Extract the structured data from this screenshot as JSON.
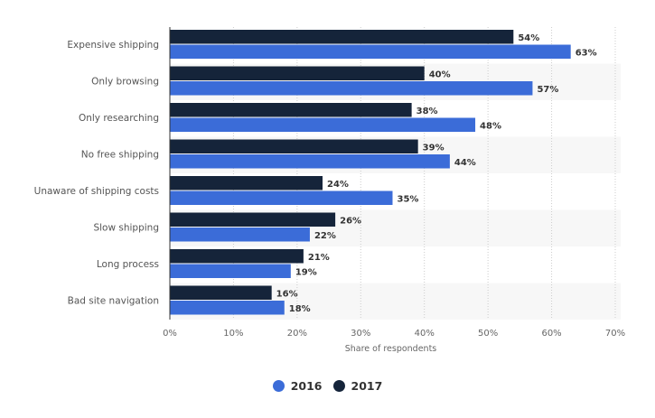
{
  "chart_data": {
    "type": "bar",
    "orientation": "horizontal",
    "title": "",
    "xlabel": "Share of respondents",
    "ylabel": "",
    "xlim": [
      0,
      70
    ],
    "x_ticks": [
      "0%",
      "10%",
      "20%",
      "30%",
      "40%",
      "50%",
      "60%",
      "70%"
    ],
    "grid": true,
    "legend_position": "bottom-center",
    "categories": [
      "Expensive shipping",
      "Only browsing",
      "Only researching",
      "No free shipping",
      "Unaware of shipping costs",
      "Slow shipping",
      "Long process",
      "Bad site navigation"
    ],
    "series": [
      {
        "name": "2017",
        "color": "#15243a",
        "values": [
          54,
          40,
          38,
          39,
          24,
          26,
          21,
          16
        ]
      },
      {
        "name": "2016",
        "color": "#3b6cd8",
        "values": [
          63,
          57,
          48,
          44,
          35,
          22,
          19,
          18
        ]
      }
    ],
    "value_suffix": "%",
    "legend": [
      {
        "name": "2016",
        "color": "#3b6cd8"
      },
      {
        "name": "2017",
        "color": "#15243a"
      }
    ]
  }
}
